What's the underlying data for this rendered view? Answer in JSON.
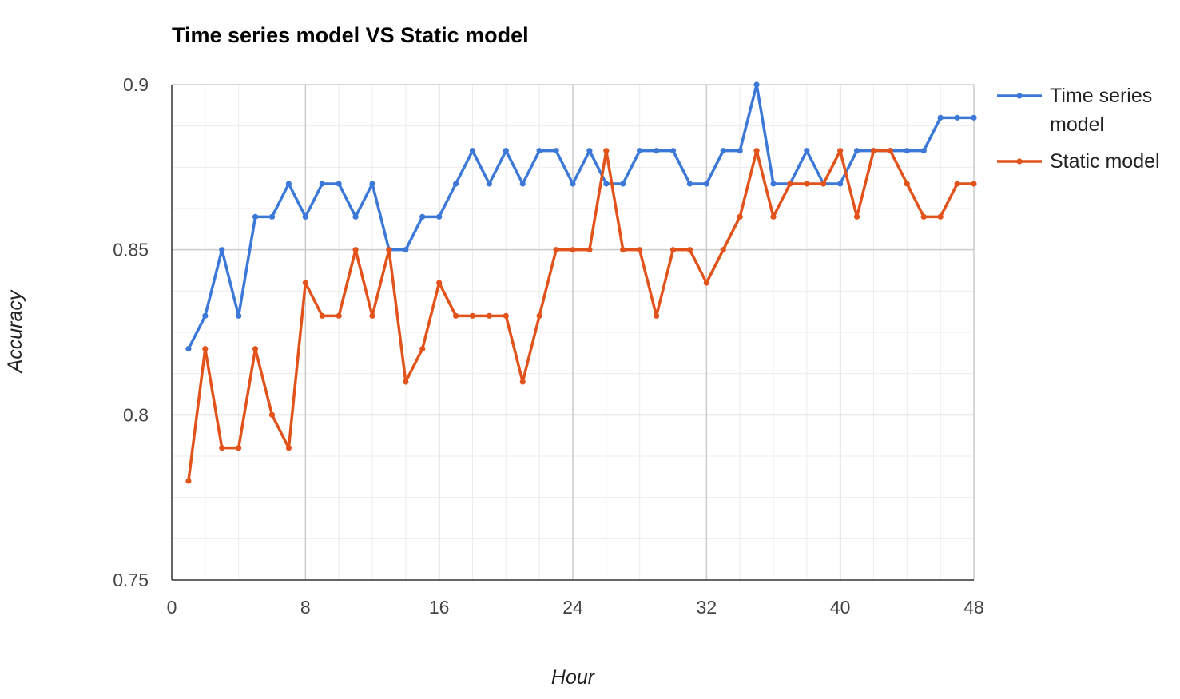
{
  "chart_data": {
    "type": "line",
    "title": "Time series model VS Static model",
    "xlabel": "Hour",
    "ylabel": "Accuracy",
    "xlim": [
      0,
      48
    ],
    "ylim": [
      0.75,
      0.9
    ],
    "x_ticks": [
      "0",
      "8",
      "16",
      "24",
      "32",
      "40",
      "48"
    ],
    "y_ticks": [
      "0.75",
      "0.8",
      "0.85",
      "0.9"
    ],
    "x_tick_values": [
      0,
      8,
      16,
      24,
      32,
      40,
      48
    ],
    "y_tick_values": [
      0.75,
      0.8,
      0.85,
      0.9
    ],
    "x_minor_gridlines": [
      2,
      4,
      6,
      10,
      12,
      14,
      18,
      20,
      22,
      26,
      28,
      30,
      34,
      36,
      38,
      42,
      44,
      46
    ],
    "y_minor_gridlines": [
      0.7625,
      0.775,
      0.7875,
      0.8125,
      0.825,
      0.8375,
      0.8625,
      0.875,
      0.8875
    ],
    "grid": true,
    "legend_position": "right",
    "x": [
      1,
      2,
      3,
      4,
      5,
      6,
      7,
      8,
      9,
      10,
      11,
      12,
      13,
      14,
      15,
      16,
      17,
      18,
      19,
      20,
      21,
      22,
      23,
      24,
      25,
      26,
      27,
      28,
      29,
      30,
      31,
      32,
      33,
      34,
      35,
      36,
      37,
      38,
      39,
      40,
      41,
      42,
      43,
      44,
      45,
      46,
      47,
      48
    ],
    "series": [
      {
        "name": "Time series model",
        "legend_lines": [
          "Time series",
          "model"
        ],
        "color": "#3c78d8",
        "values": [
          0.82,
          0.83,
          0.85,
          0.83,
          0.86,
          0.86,
          0.87,
          0.86,
          0.87,
          0.87,
          0.86,
          0.87,
          0.85,
          0.85,
          0.86,
          0.86,
          0.87,
          0.88,
          0.87,
          0.88,
          0.87,
          0.88,
          0.88,
          0.87,
          0.88,
          0.87,
          0.87,
          0.88,
          0.88,
          0.88,
          0.87,
          0.87,
          0.88,
          0.88,
          0.9,
          0.87,
          0.87,
          0.88,
          0.87,
          0.87,
          0.88,
          0.88,
          0.88,
          0.88,
          0.88,
          0.89,
          0.89,
          0.89
        ]
      },
      {
        "name": "Static model",
        "legend_lines": [
          "Static model"
        ],
        "color": "#e2531b",
        "values": [
          0.78,
          0.82,
          0.79,
          0.79,
          0.82,
          0.8,
          0.79,
          0.84,
          0.83,
          0.83,
          0.85,
          0.83,
          0.85,
          0.81,
          0.82,
          0.84,
          0.83,
          0.83,
          0.83,
          0.83,
          0.81,
          0.83,
          0.85,
          0.85,
          0.85,
          0.88,
          0.85,
          0.85,
          0.83,
          0.85,
          0.85,
          0.84,
          0.85,
          0.86,
          0.88,
          0.86,
          0.87,
          0.87,
          0.87,
          0.88,
          0.86,
          0.88,
          0.88,
          0.87,
          0.86,
          0.86,
          0.87,
          0.87
        ]
      }
    ]
  }
}
